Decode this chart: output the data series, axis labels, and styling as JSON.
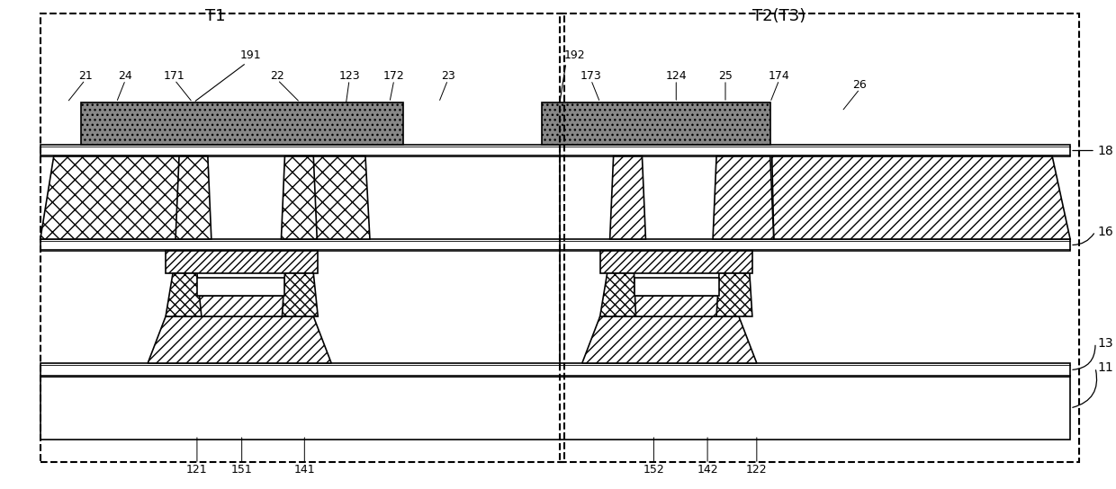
{
  "bg_color": "#ffffff",
  "line_color": "#000000",
  "fig_width": 12.4,
  "fig_height": 5.44,
  "dpi": 100,
  "T1_label": "T1",
  "T2_label": "T2(T3)"
}
